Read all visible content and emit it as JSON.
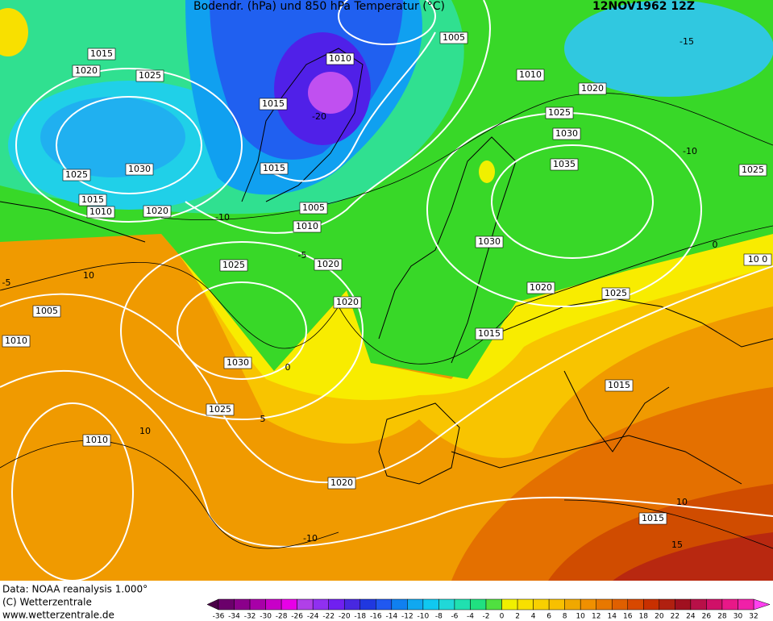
{
  "header": {
    "title": "Bodendr. (hPa) und 850 hPa Temperatur (°C)",
    "date": "12NOV1962 12Z"
  },
  "isobar_labels": [
    "1005",
    "1015",
    "1010",
    "1020",
    "1025",
    "1010",
    "1015",
    "1020",
    "1025",
    "1030",
    "1030",
    "1025",
    "1015",
    "1035",
    "1025",
    "1015",
    "1010",
    "1020",
    "1005",
    "1010",
    "1030",
    "1025",
    "1020",
    "10 0",
    "1020",
    "1025",
    "1005",
    "1020",
    "1010",
    "1015",
    "1030",
    "1015",
    "1025",
    "1010",
    "1020",
    "1015"
  ],
  "temperature_labels": [
    "-15",
    "-20",
    "-10",
    "-10",
    "-5",
    "0",
    "-5",
    "10",
    "0",
    "5",
    "10",
    "10",
    "-10",
    "15"
  ],
  "footer": {
    "lines": [
      "Data: NOAA reanalysis 1.000°",
      "(C) Wetterzentrale",
      "www.wetterzentrale.de"
    ]
  },
  "colorbar": {
    "ticks": [
      -36,
      -34,
      -32,
      -30,
      -28,
      -26,
      -24,
      -22,
      -20,
      -18,
      -16,
      -14,
      -12,
      -10,
      -8,
      -6,
      -4,
      -2,
      0,
      2,
      4,
      6,
      8,
      10,
      12,
      14,
      16,
      18,
      20,
      22,
      24,
      26,
      28,
      30,
      32
    ]
  }
}
